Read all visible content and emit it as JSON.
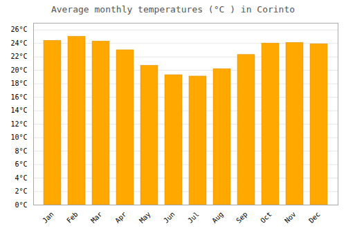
{
  "chart_data": {
    "type": "bar",
    "title": "Average monthly temperatures (°C ) in Corinto",
    "categories": [
      "Jan",
      "Feb",
      "Mar",
      "Apr",
      "May",
      "Jun",
      "Jul",
      "Aug",
      "Sep",
      "Oct",
      "Nov",
      "Dec"
    ],
    "values": [
      24.4,
      25.0,
      24.3,
      23.0,
      20.7,
      19.3,
      19.1,
      20.2,
      22.3,
      24.0,
      24.1,
      23.9
    ],
    "color": "#FFA800",
    "ylim": [
      0,
      27
    ],
    "yticks": [
      {
        "value": 0,
        "label": "0°C"
      },
      {
        "value": 2,
        "label": "2°C"
      },
      {
        "value": 4,
        "label": "4°C"
      },
      {
        "value": 6,
        "label": "6°C"
      },
      {
        "value": 8,
        "label": "8°C"
      },
      {
        "value": 10,
        "label": "10°C"
      },
      {
        "value": 12,
        "label": "12°C"
      },
      {
        "value": 14,
        "label": "14°C"
      },
      {
        "value": 16,
        "label": "16°C"
      },
      {
        "value": 18,
        "label": "18°C"
      },
      {
        "value": 20,
        "label": "20°C"
      },
      {
        "value": 22,
        "label": "22°C"
      },
      {
        "value": 24,
        "label": "24°C"
      },
      {
        "value": 26,
        "label": "26°C"
      }
    ],
    "grid": true
  }
}
